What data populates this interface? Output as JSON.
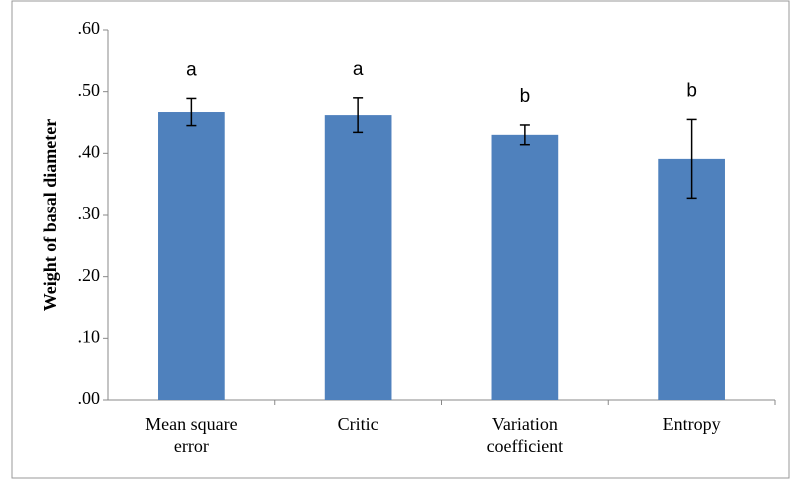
{
  "chart_data": {
    "type": "bar",
    "y_label": "Weight of basal diameter",
    "categories": [
      "Mean square error",
      "Critic",
      "Variation coefficient",
      "Entropy"
    ],
    "values": [
      0.467,
      0.462,
      0.43,
      0.391
    ],
    "errors": [
      0.022,
      0.028,
      0.016,
      0.064
    ],
    "letters": [
      "a",
      "a",
      "b",
      "b"
    ],
    "color": "#4f81bd",
    "ylim": [
      0,
      0.6
    ],
    "yticks": [
      {
        "value": 0,
        "label": ".00"
      },
      {
        "value": 0.1,
        "label": ".10"
      },
      {
        "value": 0.2,
        "label": ".20"
      },
      {
        "value": 0.3,
        "label": ".30"
      },
      {
        "value": 0.4,
        "label": ".40"
      },
      {
        "value": 0.5,
        "label": ".50"
      },
      {
        "value": 0.6,
        "label": ".60"
      }
    ],
    "grid": false
  }
}
